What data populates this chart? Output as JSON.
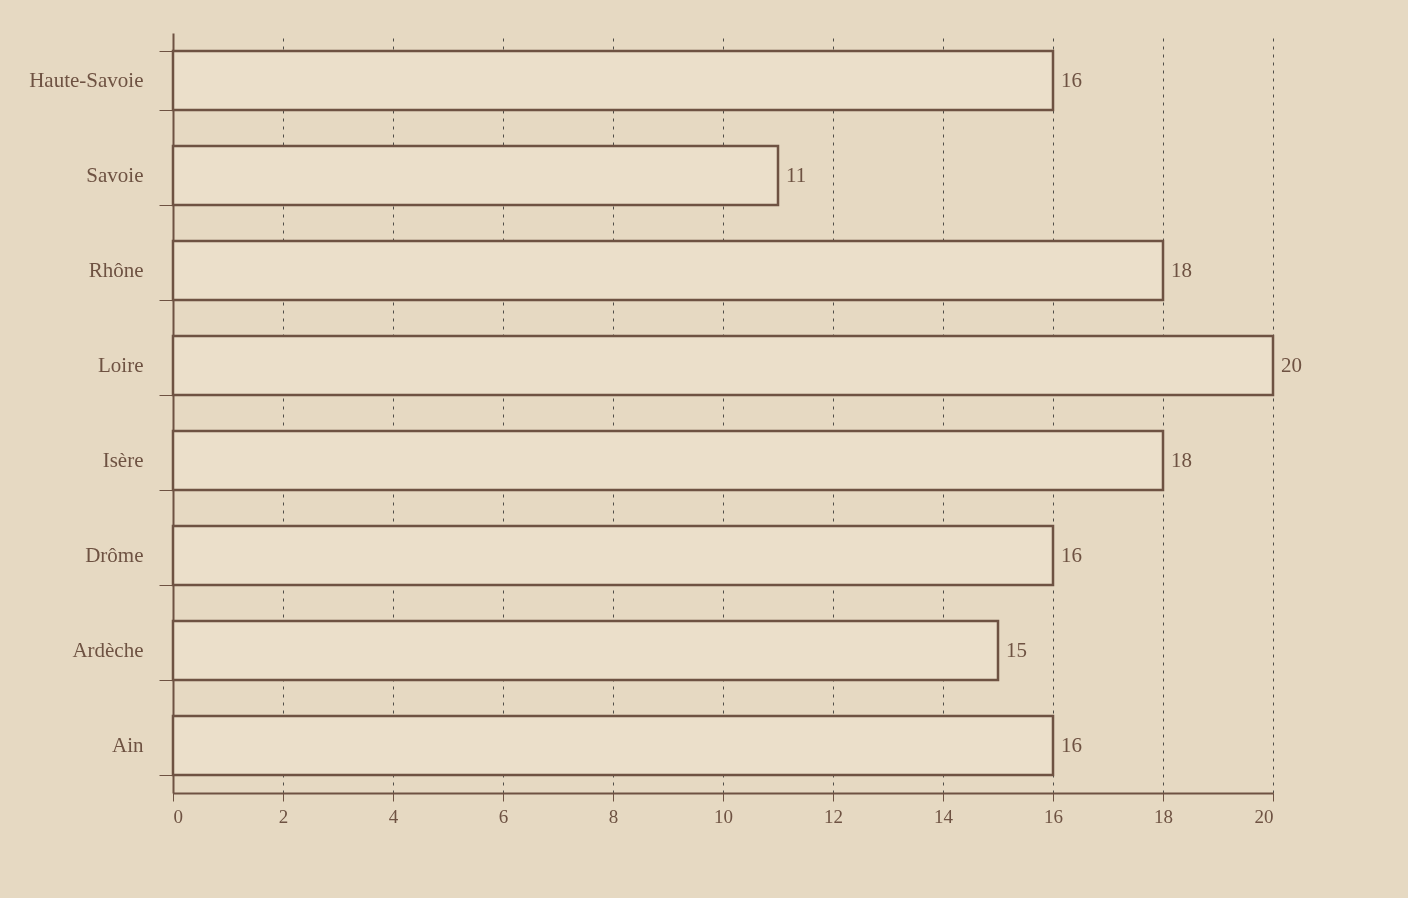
{
  "chart_data": {
    "type": "bar",
    "orientation": "horizontal",
    "categories": [
      "Haute-Savoie",
      "Savoie",
      "Rhône",
      "Loire",
      "Isère",
      "Drôme",
      "Ardèche",
      "Ain"
    ],
    "values": [
      16,
      11,
      18,
      20,
      18,
      16,
      15,
      16
    ],
    "color": "#ebdfca",
    "xlim": [
      0,
      20
    ],
    "xticks": [
      0,
      2,
      4,
      6,
      8,
      10,
      12,
      14,
      16,
      18,
      20
    ],
    "grid": "x",
    "data_labels": true
  }
}
